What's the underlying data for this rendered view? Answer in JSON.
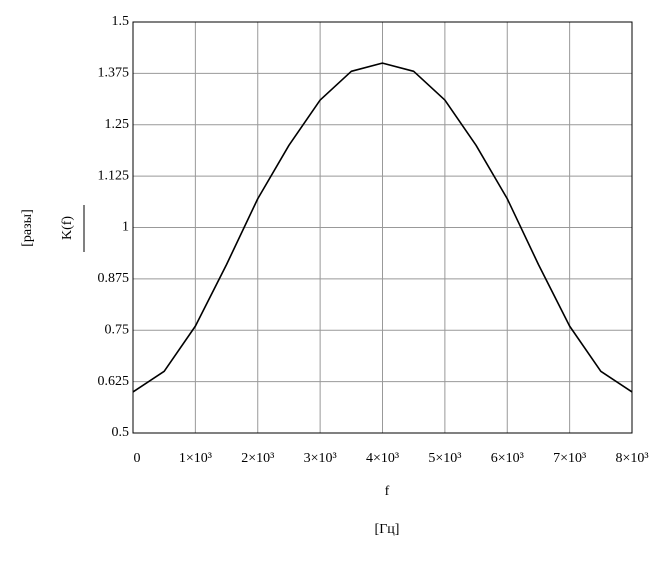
{
  "chart_data": {
    "type": "line",
    "xlabel": "f",
    "xunit": "[Гц]",
    "ylabel": "K(f)",
    "yunit": "[разы]",
    "x": [
      0,
      500,
      1000,
      1500,
      2000,
      2500,
      3000,
      3500,
      4000,
      4500,
      5000,
      5500,
      6000,
      6500,
      7000,
      7500,
      8000
    ],
    "series": [
      {
        "name": "K(f)",
        "color": "#000000",
        "values": [
          0.6,
          0.65,
          0.76,
          0.91,
          1.07,
          1.2,
          1.31,
          1.38,
          1.4,
          1.38,
          1.31,
          1.2,
          1.07,
          0.91,
          0.76,
          0.65,
          0.6
        ]
      }
    ],
    "xlim": [
      0,
      8000
    ],
    "xticks": [
      0,
      {
        "value": 1000,
        "label": "1×10³"
      },
      {
        "value": 2000,
        "label": "2×10³"
      },
      {
        "value": 3000,
        "label": "3×10³"
      },
      {
        "value": 4000,
        "label": "4×10³"
      },
      {
        "value": 5000,
        "label": "5×10³"
      },
      {
        "value": 6000,
        "label": "6×10³"
      },
      {
        "value": 7000,
        "label": "7×10³"
      },
      {
        "value": 8000,
        "label": "8×10³"
      }
    ],
    "ylim": [
      0.5,
      1.5
    ],
    "yticks": [
      0.5,
      0.625,
      0.75,
      0.875,
      1,
      1.125,
      1.25,
      1.375,
      1.5
    ],
    "grid": true
  }
}
